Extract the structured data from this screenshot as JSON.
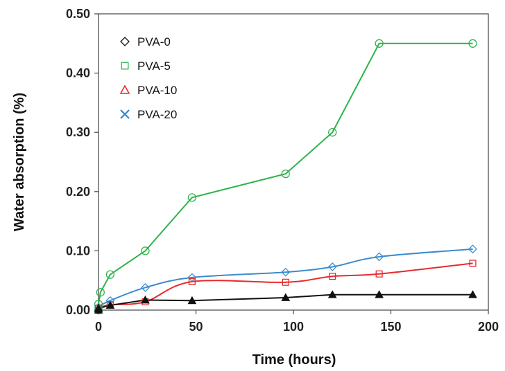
{
  "chart_data": {
    "type": "line",
    "title": "",
    "xlabel": "Time (hours)",
    "ylabel": "Water absorption (%)",
    "xlim": [
      0,
      200
    ],
    "ylim": [
      0,
      0.5
    ],
    "xticks": [
      "0",
      "50",
      "100",
      "150",
      "200"
    ],
    "yticks": [
      "0.00",
      "0.10",
      "0.20",
      "0.30",
      "0.40",
      "0.50"
    ],
    "grid": false,
    "legend_position": "top-left",
    "legend": [
      {
        "name": "PVA-0",
        "marker": "diamond",
        "color": "#111111"
      },
      {
        "name": "PVA-5",
        "marker": "square",
        "color": "#2db34a"
      },
      {
        "name": "PVA-10",
        "marker": "triangle",
        "color": "#e8292b"
      },
      {
        "name": "PVA-20",
        "marker": "x",
        "color": "#2e86d1"
      }
    ],
    "series": [
      {
        "color": "#2db34a",
        "marker": "circle",
        "smooth": false,
        "points": [
          [
            0,
            0.0
          ],
          [
            0,
            0.01
          ],
          [
            1,
            0.03
          ],
          [
            6,
            0.06
          ],
          [
            24,
            0.1
          ],
          [
            48,
            0.19
          ],
          [
            96,
            0.23
          ],
          [
            120,
            0.3
          ],
          [
            144,
            0.45
          ],
          [
            192,
            0.45
          ]
        ]
      },
      {
        "color": "#3b8ccf",
        "marker": "diamond",
        "smooth": true,
        "points": [
          [
            0,
            0.0
          ],
          [
            0,
            0.005
          ],
          [
            6,
            0.016
          ],
          [
            24,
            0.038
          ],
          [
            48,
            0.055
          ],
          [
            96,
            0.064
          ],
          [
            120,
            0.073
          ],
          [
            144,
            0.09
          ],
          [
            192,
            0.103
          ]
        ]
      },
      {
        "color": "#e8292b",
        "marker": "square",
        "smooth": true,
        "points": [
          [
            0,
            0.0
          ],
          [
            0,
            0.003
          ],
          [
            6,
            0.009
          ],
          [
            24,
            0.014
          ],
          [
            48,
            0.048
          ],
          [
            96,
            0.047
          ],
          [
            120,
            0.057
          ],
          [
            144,
            0.061
          ],
          [
            192,
            0.079
          ]
        ]
      },
      {
        "color": "#111111",
        "marker": "triangle-filled",
        "smooth": false,
        "points": [
          [
            0,
            0.0
          ],
          [
            0,
            0.003
          ],
          [
            6,
            0.008
          ],
          [
            24,
            0.017
          ],
          [
            48,
            0.016
          ],
          [
            96,
            0.021
          ],
          [
            120,
            0.026
          ],
          [
            144,
            0.026
          ],
          [
            192,
            0.026
          ]
        ]
      }
    ]
  }
}
